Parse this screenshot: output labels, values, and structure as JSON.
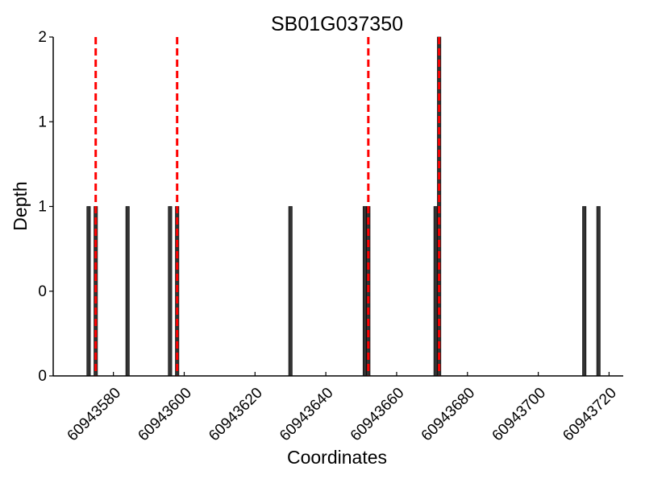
{
  "chart_data": {
    "type": "bar",
    "title": "SB01G037350",
    "xlabel": "Coordinates",
    "ylabel": "Depth",
    "xlim": [
      60943563,
      60943724
    ],
    "ylim": [
      0,
      2
    ],
    "xticks": [
      60943580,
      60943600,
      60943620,
      60943640,
      60943660,
      60943680,
      60943700,
      60943720
    ],
    "yticks": [
      {
        "value": 0,
        "label": "0"
      },
      {
        "value": 0.5,
        "label": "0"
      },
      {
        "value": 1,
        "label": "1"
      },
      {
        "value": 1.5,
        "label": "1"
      },
      {
        "value": 2,
        "label": "2"
      }
    ],
    "grid": false,
    "series": [
      {
        "x": [
          60943573,
          60943575,
          60943584,
          60943596,
          60943598,
          60943630,
          60943651,
          60943652,
          60943671,
          60943672,
          60943713,
          60943717
        ],
        "values": [
          1,
          1,
          1,
          1,
          1,
          1,
          1,
          1,
          1,
          2,
          1,
          1
        ],
        "color": "#333333"
      }
    ],
    "markers": {
      "x": [
        60943575,
        60943598,
        60943652,
        60943672
      ],
      "color": "#ff0000",
      "style": "dashed"
    }
  }
}
